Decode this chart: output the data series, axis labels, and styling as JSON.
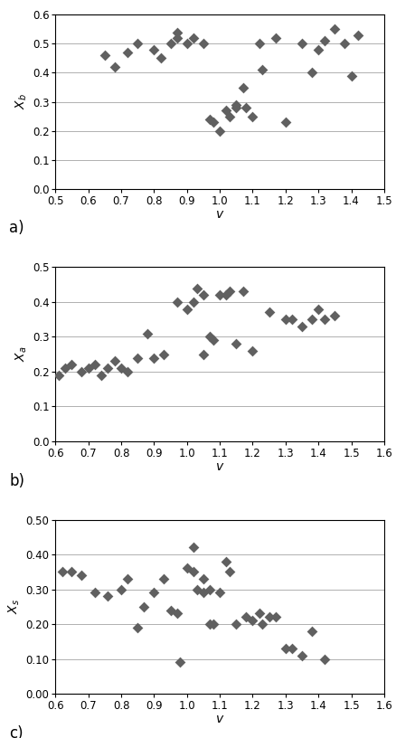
{
  "plot_a": {
    "ylabel": "$X_b$",
    "xlabel": "v",
    "xlim": [
      0.5,
      1.5
    ],
    "ylim": [
      0.0,
      0.6
    ],
    "xticks": [
      0.5,
      0.6,
      0.7,
      0.8,
      0.9,
      1.0,
      1.1,
      1.2,
      1.3,
      1.4,
      1.5
    ],
    "yticks": [
      0.0,
      0.1,
      0.2,
      0.3,
      0.4,
      0.5,
      0.6
    ],
    "x": [
      0.65,
      0.68,
      0.72,
      0.75,
      0.8,
      0.82,
      0.85,
      0.87,
      0.87,
      0.9,
      0.92,
      0.95,
      0.97,
      0.98,
      1.0,
      1.02,
      1.03,
      1.05,
      1.05,
      1.07,
      1.08,
      1.1,
      1.12,
      1.13,
      1.17,
      1.2,
      1.25,
      1.28,
      1.3,
      1.32,
      1.35,
      1.38,
      1.4,
      1.42
    ],
    "y": [
      0.46,
      0.42,
      0.47,
      0.5,
      0.48,
      0.45,
      0.5,
      0.52,
      0.54,
      0.5,
      0.52,
      0.5,
      0.24,
      0.23,
      0.2,
      0.27,
      0.25,
      0.29,
      0.28,
      0.35,
      0.28,
      0.25,
      0.5,
      0.41,
      0.52,
      0.23,
      0.5,
      0.4,
      0.48,
      0.51,
      0.55,
      0.5,
      0.39,
      0.53
    ],
    "label": "a)"
  },
  "plot_b": {
    "ylabel": "$X_a$",
    "xlabel": "v",
    "xlim": [
      0.6,
      1.6
    ],
    "ylim": [
      0.0,
      0.5
    ],
    "xticks": [
      0.6,
      0.7,
      0.8,
      0.9,
      1.0,
      1.1,
      1.2,
      1.3,
      1.4,
      1.5,
      1.6
    ],
    "yticks": [
      0.0,
      0.1,
      0.2,
      0.3,
      0.4,
      0.5
    ],
    "x": [
      0.61,
      0.63,
      0.65,
      0.68,
      0.7,
      0.72,
      0.74,
      0.76,
      0.78,
      0.8,
      0.82,
      0.85,
      0.88,
      0.9,
      0.93,
      0.97,
      1.0,
      1.02,
      1.03,
      1.05,
      1.05,
      1.07,
      1.08,
      1.1,
      1.12,
      1.13,
      1.15,
      1.17,
      1.2,
      1.25,
      1.3,
      1.32,
      1.35,
      1.38,
      1.4,
      1.42,
      1.45
    ],
    "y": [
      0.19,
      0.21,
      0.22,
      0.2,
      0.21,
      0.22,
      0.19,
      0.21,
      0.23,
      0.21,
      0.2,
      0.24,
      0.31,
      0.24,
      0.25,
      0.4,
      0.38,
      0.4,
      0.44,
      0.42,
      0.25,
      0.3,
      0.29,
      0.42,
      0.42,
      0.43,
      0.28,
      0.43,
      0.26,
      0.37,
      0.35,
      0.35,
      0.33,
      0.35,
      0.38,
      0.35,
      0.36
    ],
    "label": "b)"
  },
  "plot_c": {
    "ylabel": "$X_s$",
    "xlabel": "v",
    "xlim": [
      0.6,
      1.6
    ],
    "ylim": [
      0.0,
      0.5
    ],
    "xticks": [
      0.6,
      0.7,
      0.8,
      0.9,
      1.0,
      1.1,
      1.2,
      1.3,
      1.4,
      1.5,
      1.6
    ],
    "yticks": [
      0.0,
      0.1,
      0.2,
      0.3,
      0.4,
      0.5
    ],
    "x": [
      0.62,
      0.65,
      0.68,
      0.72,
      0.76,
      0.8,
      0.82,
      0.85,
      0.87,
      0.9,
      0.93,
      0.95,
      0.97,
      0.98,
      1.0,
      1.02,
      1.02,
      1.03,
      1.05,
      1.05,
      1.07,
      1.07,
      1.08,
      1.1,
      1.12,
      1.13,
      1.15,
      1.18,
      1.2,
      1.22,
      1.23,
      1.25,
      1.27,
      1.3,
      1.32,
      1.35,
      1.38,
      1.42
    ],
    "y": [
      0.35,
      0.35,
      0.34,
      0.29,
      0.28,
      0.3,
      0.33,
      0.19,
      0.25,
      0.29,
      0.33,
      0.24,
      0.23,
      0.09,
      0.36,
      0.35,
      0.42,
      0.3,
      0.33,
      0.29,
      0.2,
      0.3,
      0.2,
      0.29,
      0.38,
      0.35,
      0.2,
      0.22,
      0.21,
      0.23,
      0.2,
      0.22,
      0.22,
      0.13,
      0.13,
      0.11,
      0.18,
      0.1
    ],
    "label": "c)"
  },
  "marker_color": "#606060",
  "marker_size": 6,
  "label_fontsize": 10,
  "tick_fontsize": 8.5,
  "grid_color": "#b0b0b0",
  "panel_label_fontsize": 12,
  "fig_width": 4.38,
  "fig_height": 8.16,
  "dpi": 100
}
